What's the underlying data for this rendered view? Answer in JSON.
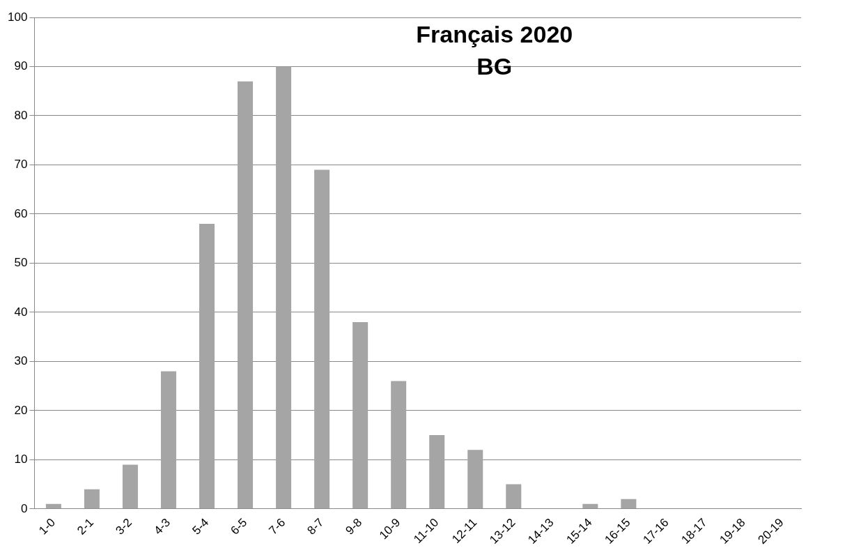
{
  "chart_data": {
    "type": "bar",
    "title": "Français 2020",
    "subtitle": "BG",
    "categories": [
      "1-0",
      "2-1",
      "3-2",
      "4-3",
      "5-4",
      "6-5",
      "7-6",
      "8-7",
      "9-8",
      "10-9",
      "11-10",
      "12-11",
      "13-12",
      "14-13",
      "15-14",
      "16-15",
      "17-16",
      "18-17",
      "19-18",
      "20-19"
    ],
    "values": [
      1,
      4,
      9,
      28,
      58,
      87,
      90,
      69,
      38,
      26,
      15,
      12,
      5,
      0,
      1,
      2,
      0,
      0,
      0,
      0
    ],
    "color": "#a5a5a5",
    "ylim": [
      0,
      100
    ],
    "yticks": [
      0,
      10,
      20,
      30,
      40,
      50,
      60,
      70,
      80,
      90,
      100
    ],
    "grid": "y",
    "legend": false
  }
}
